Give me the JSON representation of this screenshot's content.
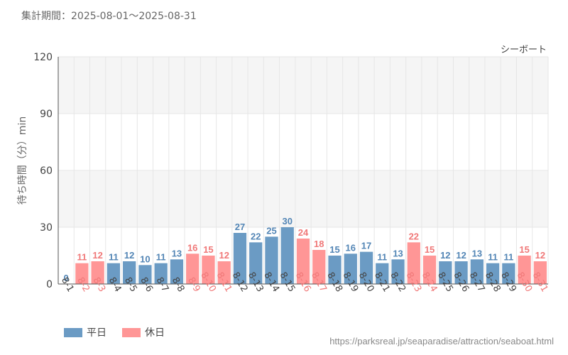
{
  "header": {
    "period": "集計期間：2025-08-01～2025-08-31"
  },
  "footer": {
    "source_url": "https://parksreal.jp/seaparadise/attraction/seaboat.html"
  },
  "colors": {
    "weekday": "#6b9bc4",
    "holiday": "#ff9696",
    "weekday_text": "#5285b5",
    "holiday_text": "#f07878",
    "band": "#f5f5f5",
    "grid": "#e6e6e6",
    "axis": "#555555"
  },
  "chart_data": {
    "type": "bar",
    "title": "シーボート",
    "ylabel": "待ち時間（分）min",
    "xlabel": "",
    "ylim": [
      0,
      120
    ],
    "yticks": [
      0,
      30,
      60,
      90,
      120
    ],
    "categories": [
      "8-1",
      "8-2",
      "8-3",
      "8-4",
      "8-5",
      "8-6",
      "8-7",
      "8-8",
      "8-9",
      "8-10",
      "8-11",
      "8-12",
      "8-13",
      "8-14",
      "8-15",
      "8-16",
      "8-17",
      "8-18",
      "8-19",
      "8-20",
      "8-21",
      "8-22",
      "8-23",
      "8-24",
      "8-25",
      "8-26",
      "8-27",
      "8-28",
      "8-29",
      "8-30",
      "8-31"
    ],
    "values": [
      0,
      11,
      12,
      11,
      12,
      10,
      11,
      13,
      16,
      15,
      12,
      27,
      22,
      25,
      30,
      24,
      18,
      15,
      16,
      17,
      11,
      13,
      22,
      15,
      12,
      12,
      13,
      11,
      11,
      15,
      12
    ],
    "day_type": [
      "weekday",
      "holiday",
      "holiday",
      "weekday",
      "weekday",
      "weekday",
      "weekday",
      "weekday",
      "holiday",
      "holiday",
      "holiday",
      "weekday",
      "weekday",
      "weekday",
      "weekday",
      "holiday",
      "holiday",
      "weekday",
      "weekday",
      "weekday",
      "weekday",
      "weekday",
      "holiday",
      "holiday",
      "weekday",
      "weekday",
      "weekday",
      "weekday",
      "weekday",
      "holiday",
      "holiday"
    ],
    "legend": [
      {
        "key": "weekday",
        "label": "平日"
      },
      {
        "key": "holiday",
        "label": "休日"
      }
    ]
  }
}
